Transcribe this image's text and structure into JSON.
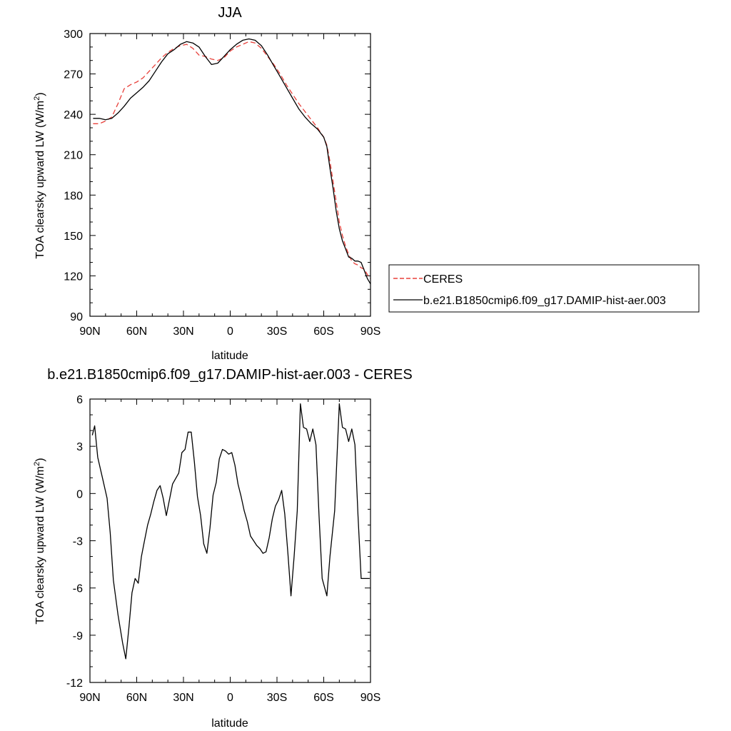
{
  "chart_data": [
    {
      "type": "line",
      "title": "JJA",
      "xlabel": "latitude",
      "ylabel": "TOA clearsky upward LW (W/m²)",
      "ylabel_main": "TOA clearsky upward LW (W/m",
      "ylabel_sup": "2",
      "ylabel_tail": ")",
      "xlim": [
        90,
        -90
      ],
      "ylim": [
        90,
        300
      ],
      "xticks": [
        90,
        60,
        30,
        0,
        -30,
        -60,
        -90
      ],
      "xtick_labels": [
        "90N",
        "60N",
        "30N",
        "0",
        "30S",
        "60S",
        "90S"
      ],
      "yticks": [
        90,
        120,
        150,
        180,
        210,
        240,
        270,
        300
      ],
      "ytick_labels": [
        "90",
        "120",
        "150",
        "180",
        "210",
        "240",
        "270",
        "300"
      ],
      "legend": {
        "placement": "right",
        "entries": [
          "CERES",
          "b.e21.B1850cmip6.f09_g17.DAMIP-hist-aer.003"
        ]
      },
      "series": [
        {
          "name": "CERES",
          "color": "#e8403a",
          "dash": "dashed",
          "x": [
            88,
            84,
            80,
            76,
            72,
            68,
            64,
            60,
            56,
            52,
            48,
            44,
            40,
            36,
            32,
            28,
            24,
            20,
            16,
            12,
            8,
            4,
            0,
            -4,
            -8,
            -12,
            -16,
            -20,
            -24,
            -28,
            -32,
            -36,
            -40,
            -44,
            -48,
            -52,
            -56,
            -60,
            -62,
            -64,
            -66,
            -68,
            -70,
            -72,
            -74,
            -76,
            -78,
            -80,
            -82,
            -84,
            -86,
            -88,
            -90
          ],
          "y": [
            233,
            233,
            235,
            238,
            248,
            259,
            262,
            264,
            267,
            272,
            277,
            282,
            286,
            289,
            291,
            292,
            289,
            284,
            283,
            281,
            280,
            282,
            287,
            290,
            292,
            294,
            293,
            289,
            283,
            277,
            270,
            262,
            255,
            248,
            242,
            236,
            230,
            223,
            217,
            205,
            190,
            175,
            160,
            150,
            142,
            136,
            131,
            129,
            128,
            126,
            125,
            121,
            118
          ]
        },
        {
          "name": "b.e21.B1850cmip6.f09_g17.DAMIP-hist-aer.003",
          "color": "#000000",
          "dash": "solid",
          "x": [
            88,
            84,
            80,
            76,
            72,
            68,
            64,
            60,
            56,
            52,
            48,
            44,
            40,
            36,
            32,
            28,
            24,
            20,
            16,
            12,
            8,
            4,
            0,
            -4,
            -8,
            -12,
            -16,
            -20,
            -24,
            -28,
            -32,
            -36,
            -40,
            -44,
            -48,
            -52,
            -56,
            -60,
            -62,
            -64,
            -66,
            -68,
            -70,
            -72,
            -74,
            -76,
            -78,
            -80,
            -82,
            -84,
            -86,
            -88,
            -90
          ],
          "y": [
            237,
            237,
            236,
            237,
            241,
            246,
            252,
            256,
            260,
            265,
            272,
            279,
            285,
            288,
            292,
            294,
            293,
            290,
            283,
            277,
            278,
            283,
            288,
            292,
            295,
            296,
            295,
            291,
            284,
            276,
            268,
            260,
            252,
            244,
            238,
            233,
            229,
            223,
            216,
            200,
            185,
            168,
            155,
            146,
            140,
            134,
            133,
            131,
            131,
            130,
            124,
            118,
            114
          ]
        }
      ]
    },
    {
      "type": "line",
      "title": "b.e21.B1850cmip6.f09_g17.DAMIP-hist-aer.003 - CERES",
      "xlabel": "latitude",
      "ylabel": "TOA clearsky upward LW (W/m²)",
      "ylabel_main": "TOA clearsky upward LW (W/m",
      "ylabel_sup": "2",
      "ylabel_tail": ")",
      "xlim": [
        90,
        -90
      ],
      "ylim": [
        -12,
        6
      ],
      "xticks": [
        90,
        60,
        30,
        0,
        -30,
        -60,
        -90
      ],
      "xtick_labels": [
        "90N",
        "60N",
        "30N",
        "0",
        "30S",
        "60S",
        "90S"
      ],
      "yticks": [
        -12,
        -9,
        -6,
        -3,
        0,
        3,
        6
      ],
      "ytick_labels": [
        "-12",
        "-9",
        "-6",
        "-3",
        "0",
        "3",
        "6"
      ],
      "series": [
        {
          "color": "#000000",
          "dash": "solid",
          "x": [
            88.5,
            87,
            85,
            82,
            79,
            77,
            75,
            72,
            69,
            67,
            65,
            63,
            61,
            59,
            57,
            55,
            53,
            51,
            49,
            47,
            45,
            43,
            41,
            37,
            33,
            31,
            29,
            27,
            25,
            23,
            21,
            19,
            17,
            15,
            13,
            11,
            9,
            7,
            5,
            3,
            1,
            -1,
            -3,
            -5,
            -7,
            -9,
            -11,
            -13,
            -15,
            -17,
            -19,
            -21,
            -23,
            -25,
            -27,
            -29,
            -31,
            -33,
            -35,
            -37,
            -39,
            -41,
            -43,
            -45,
            -47,
            -49,
            -51,
            -53,
            -55,
            -57,
            -59,
            -62,
            -64,
            -67,
            -70,
            -72,
            -74,
            -76,
            -78,
            -80,
            -82,
            -84,
            -86,
            -88,
            -89.5
          ],
          "y": [
            3.7,
            4.3,
            2.3,
            1.0,
            -0.3,
            -2.5,
            -5.5,
            -7.7,
            -9.5,
            -10.5,
            -8.5,
            -6.3,
            -5.4,
            -5.7,
            -4.0,
            -3.0,
            -2.0,
            -1.3,
            -0.5,
            0.2,
            0.5,
            -0.3,
            -1.4,
            0.6,
            1.3,
            2.6,
            2.8,
            3.9,
            3.9,
            2.0,
            -0.2,
            -1.4,
            -3.2,
            -3.8,
            -2.2,
            -0.1,
            0.7,
            2.2,
            2.8,
            2.7,
            2.5,
            2.6,
            1.8,
            0.6,
            -0.2,
            -1.1,
            -1.8,
            -2.7,
            -3.0,
            -3.3,
            -3.5,
            -3.8,
            -3.7,
            -2.8,
            -1.6,
            -0.8,
            -0.4,
            0.2,
            -1.3,
            -3.8,
            -6.5,
            -4.0,
            -1.1,
            5.7,
            4.2,
            4.1,
            3.3,
            4.1,
            3.1,
            -1.4,
            -5.4,
            -6.5,
            -4.0,
            -1.1,
            5.7,
            4.2,
            4.1,
            3.3,
            4.1,
            3.1,
            -1.4,
            -5.4,
            -5.4,
            -5.4,
            -5.4
          ]
        }
      ]
    }
  ]
}
